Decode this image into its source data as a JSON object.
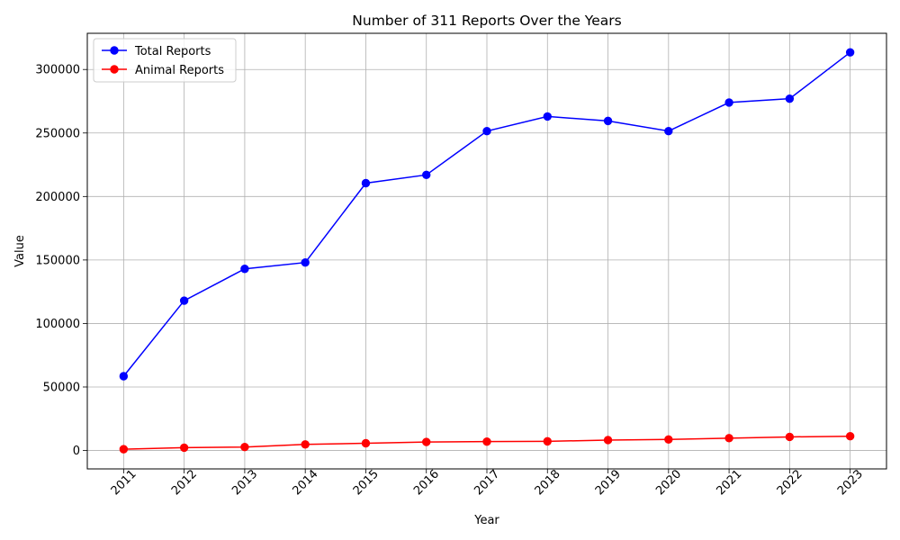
{
  "chart_data": {
    "type": "line",
    "title": "Number of 311 Reports Over the Years",
    "xlabel": "Year",
    "ylabel": "Value",
    "x": [
      2011,
      2012,
      2013,
      2014,
      2015,
      2016,
      2017,
      2018,
      2019,
      2020,
      2021,
      2022,
      2023
    ],
    "x_tick_labels": [
      "2011",
      "2012",
      "2013",
      "2014",
      "2015",
      "2016",
      "2017",
      "2018",
      "2019",
      "2020",
      "2021",
      "2022",
      "2023"
    ],
    "series": [
      {
        "name": "Total Reports",
        "color": "#0000ff",
        "marker": "circle",
        "values": [
          58500,
          118000,
          143000,
          148000,
          210500,
          217000,
          251500,
          263000,
          259500,
          251500,
          274000,
          277000,
          313500
        ]
      },
      {
        "name": "Animal Reports",
        "color": "#ff0000",
        "marker": "circle",
        "values": [
          1000,
          2200,
          2700,
          4800,
          5700,
          6700,
          7000,
          7200,
          8200,
          8700,
          9700,
          10700,
          11200
        ]
      }
    ],
    "ylim": [
      -14500,
      328500
    ],
    "y_ticks": [
      0,
      50000,
      100000,
      150000,
      200000,
      250000,
      300000
    ],
    "y_tick_labels": [
      "0",
      "50000",
      "100000",
      "150000",
      "200000",
      "250000",
      "300000"
    ],
    "grid": true,
    "legend_position": "upper-left",
    "x_tick_rotation": "45 degrees"
  }
}
